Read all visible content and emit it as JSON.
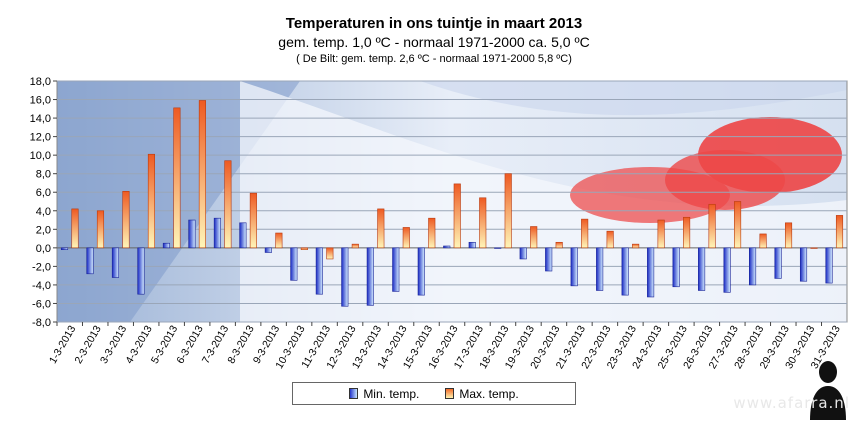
{
  "chart_data": {
    "type": "bar",
    "title": "Temperaturen in ons tuintje in maart 2013",
    "subtitle": "gem. temp. 1,0 ºC - normaal  1971-2000 ca.  5,0 ºC",
    "note": "( De Bilt: gem. temp. 2,6 ºC - normaal 1971-2000  5,8 ºC)",
    "ylim": [
      -8,
      18
    ],
    "yticks": [
      "18,0",
      "16,0",
      "14,0",
      "12,0",
      "10,0",
      "8,0",
      "6,0",
      "4,0",
      "2,0",
      "0,0",
      "-2,0",
      "-4,0",
      "-6,0",
      "-8,0"
    ],
    "categories": [
      "1-3-2013",
      "2-3-2013",
      "3-3-2013",
      "4-3-2013",
      "5-3-2013",
      "6-3-2013",
      "7-3-2013",
      "8-3-2013",
      "9-3-2013",
      "10-3-2013",
      "11-3-2013",
      "12-3-2013",
      "13-3-2013",
      "14-3-2013",
      "15-3-2013",
      "16-3-2013",
      "17-3-2013",
      "18-3-2013",
      "19-3-2013",
      "20-3-2013",
      "21-3-2013",
      "22-3-2013",
      "23-3-2013",
      "24-3-2013",
      "25-3-2013",
      "26-3-2013",
      "27-3-2013",
      "28-3-2013",
      "29-3-2013",
      "30-3-2013",
      "31-3-2013"
    ],
    "series": [
      {
        "name": "Min. temp.",
        "color": "#2233cc",
        "values": [
          -0.2,
          -2.8,
          -3.2,
          -5.0,
          0.5,
          3.0,
          3.2,
          2.7,
          -0.5,
          -3.5,
          -5.0,
          -6.3,
          -6.2,
          -4.7,
          -5.1,
          0.2,
          0.6,
          0.0,
          -1.2,
          -2.5,
          -4.1,
          -4.6,
          -5.1,
          -5.3,
          -4.2,
          -4.6,
          -4.8,
          -4.0,
          -3.3,
          -3.6,
          -3.8
        ]
      },
      {
        "name": "Max. temp.",
        "color": "#f26b2a",
        "values": [
          4.2,
          4.0,
          6.1,
          10.1,
          15.1,
          15.9,
          9.4,
          5.9,
          1.6,
          -0.2,
          -1.2,
          0.4,
          4.2,
          2.2,
          3.2,
          6.9,
          5.4,
          8.0,
          2.3,
          0.6,
          3.1,
          1.8,
          0.4,
          3.0,
          3.3,
          4.7,
          5.0,
          1.5,
          2.7,
          0.0,
          3.5
        ]
      }
    ],
    "legend_position": "bottom"
  },
  "watermark": "www.afarra.nl",
  "colors": {
    "min_dark": "#2233cc",
    "min_light": "#c8e6ff",
    "max_dark": "#f26b2a",
    "max_light": "#fff3b0"
  }
}
